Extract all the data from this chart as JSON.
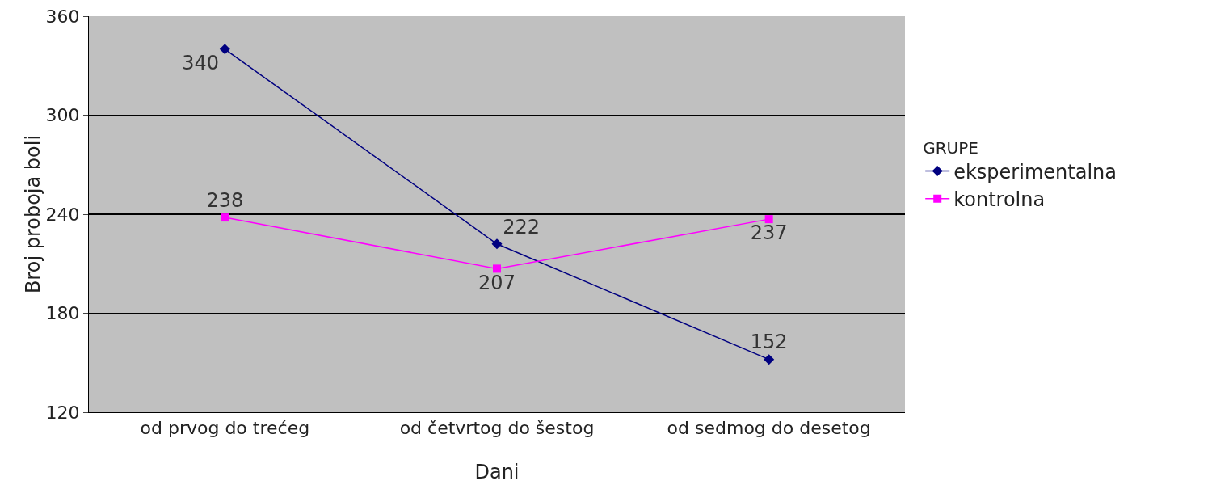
{
  "chart_data": {
    "type": "line",
    "xlabel": "Dani",
    "ylabel": "Broj proboja boli",
    "legend_title": "GRUPE",
    "categories": [
      "od prvog do trećeg",
      "od četvrtog do šestog",
      "od sedmog do desetog"
    ],
    "series": [
      {
        "name": "eksperimentalna",
        "color": "#000080",
        "marker": "diamond",
        "values": [
          340,
          222,
          152
        ]
      },
      {
        "name": "kontrolna",
        "color": "#ff00ff",
        "marker": "square",
        "values": [
          238,
          207,
          237
        ]
      }
    ],
    "ylim": [
      120,
      360
    ],
    "yticks": [
      120,
      180,
      240,
      300,
      360
    ],
    "grid": "y",
    "legend": "right",
    "data_labels": true,
    "line_style": "solid"
  }
}
